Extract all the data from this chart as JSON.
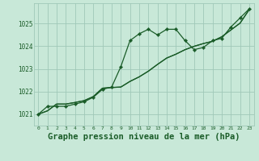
{
  "background_color": "#c8e8d8",
  "grid_color": "#a0c8b8",
  "line_color": "#1a5c28",
  "marker_color": "#1a5c28",
  "title": "Graphe pression niveau de la mer (hPa)",
  "title_fontsize": 7.5,
  "xlim": [
    -0.5,
    23.5
  ],
  "ylim": [
    1020.5,
    1025.9
  ],
  "yticks": [
    1021,
    1022,
    1023,
    1024,
    1025
  ],
  "xticks": [
    0,
    1,
    2,
    3,
    4,
    5,
    6,
    7,
    8,
    9,
    10,
    11,
    12,
    13,
    14,
    15,
    16,
    17,
    18,
    19,
    20,
    21,
    22,
    23
  ],
  "line1_x": [
    0,
    1,
    2,
    3,
    4,
    5,
    6,
    7,
    8,
    9,
    10,
    11,
    12,
    13,
    14,
    15,
    16,
    17,
    18,
    19,
    20,
    21,
    22,
    23
  ],
  "line1_y": [
    1021.0,
    1021.35,
    1021.35,
    1021.35,
    1021.45,
    1021.55,
    1021.75,
    1022.1,
    1022.2,
    1023.1,
    1024.25,
    1024.55,
    1024.75,
    1024.5,
    1024.75,
    1024.75,
    1024.25,
    1023.85,
    1023.95,
    1024.25,
    1024.35,
    1024.85,
    1025.25,
    1025.65
  ],
  "line2_x": [
    0,
    1,
    2,
    3,
    4,
    5,
    6,
    7,
    8,
    9,
    10,
    11,
    12,
    13,
    14,
    15,
    16,
    17,
    18,
    19,
    20,
    21,
    22,
    23
  ],
  "line2_y": [
    1021.0,
    1021.15,
    1021.45,
    1021.45,
    1021.52,
    1021.6,
    1021.78,
    1022.15,
    1022.18,
    1022.2,
    1022.45,
    1022.65,
    1022.9,
    1023.2,
    1023.48,
    1023.65,
    1023.85,
    1024.0,
    1024.12,
    1024.22,
    1024.42,
    1024.72,
    1025.02,
    1025.62
  ],
  "line3_x": [
    0,
    1,
    2,
    3,
    4,
    5,
    6,
    7,
    8,
    9,
    10,
    11,
    12,
    13,
    14,
    15,
    16,
    17,
    18,
    19,
    20,
    21,
    22,
    23
  ],
  "line3_y": [
    1021.0,
    1021.15,
    1021.45,
    1021.45,
    1021.52,
    1021.6,
    1021.78,
    1022.15,
    1022.18,
    1022.2,
    1022.45,
    1022.65,
    1022.9,
    1023.2,
    1023.48,
    1023.65,
    1023.85,
    1024.0,
    1024.12,
    1024.22,
    1024.42,
    1024.72,
    1025.02,
    1025.62
  ]
}
